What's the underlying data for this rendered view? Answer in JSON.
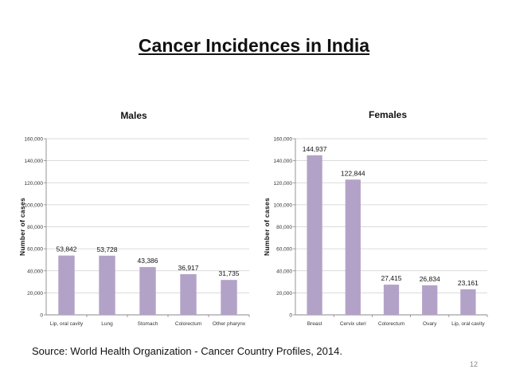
{
  "slide": {
    "title": "Cancer Incidences in India",
    "source": "Source: World Health Organization - Cancer Country Profiles, 2014.",
    "page_number": "12"
  },
  "chart_data": [
    {
      "type": "bar",
      "title": "Males",
      "xlabel": "",
      "ylabel": "Number of cases",
      "ylim": [
        0,
        160000
      ],
      "yticks": [
        "0",
        "20,000",
        "40,000",
        "60,000",
        "80,000",
        "100,000",
        "120,000",
        "140,000",
        "160,000"
      ],
      "grid": true,
      "categories": [
        "Lip, oral cavity",
        "Lung",
        "Stomach",
        "Colorectum",
        "Other pharynx"
      ],
      "values": [
        53842,
        53728,
        43386,
        36917,
        31735
      ],
      "data_labels": [
        "53,842",
        "53,728",
        "43,386",
        "36,917",
        "31,735"
      ],
      "bar_color": "#b3a2c7"
    },
    {
      "type": "bar",
      "title": "Females",
      "xlabel": "",
      "ylabel": "Number of cases",
      "ylim": [
        0,
        160000
      ],
      "yticks": [
        "0",
        "20,000",
        "40,000",
        "60,000",
        "80,000",
        "100,000",
        "120,000",
        "140,000",
        "160,000"
      ],
      "grid": true,
      "categories": [
        "Breast",
        "Cervix uteri",
        "Colorectum",
        "Ovary",
        "Lip, oral cavity"
      ],
      "values": [
        144937,
        122844,
        27415,
        26834,
        23161
      ],
      "data_labels": [
        "144,937",
        "122,844",
        "27,415",
        "26,834",
        "23,161"
      ],
      "bar_color": "#b3a2c7"
    }
  ]
}
